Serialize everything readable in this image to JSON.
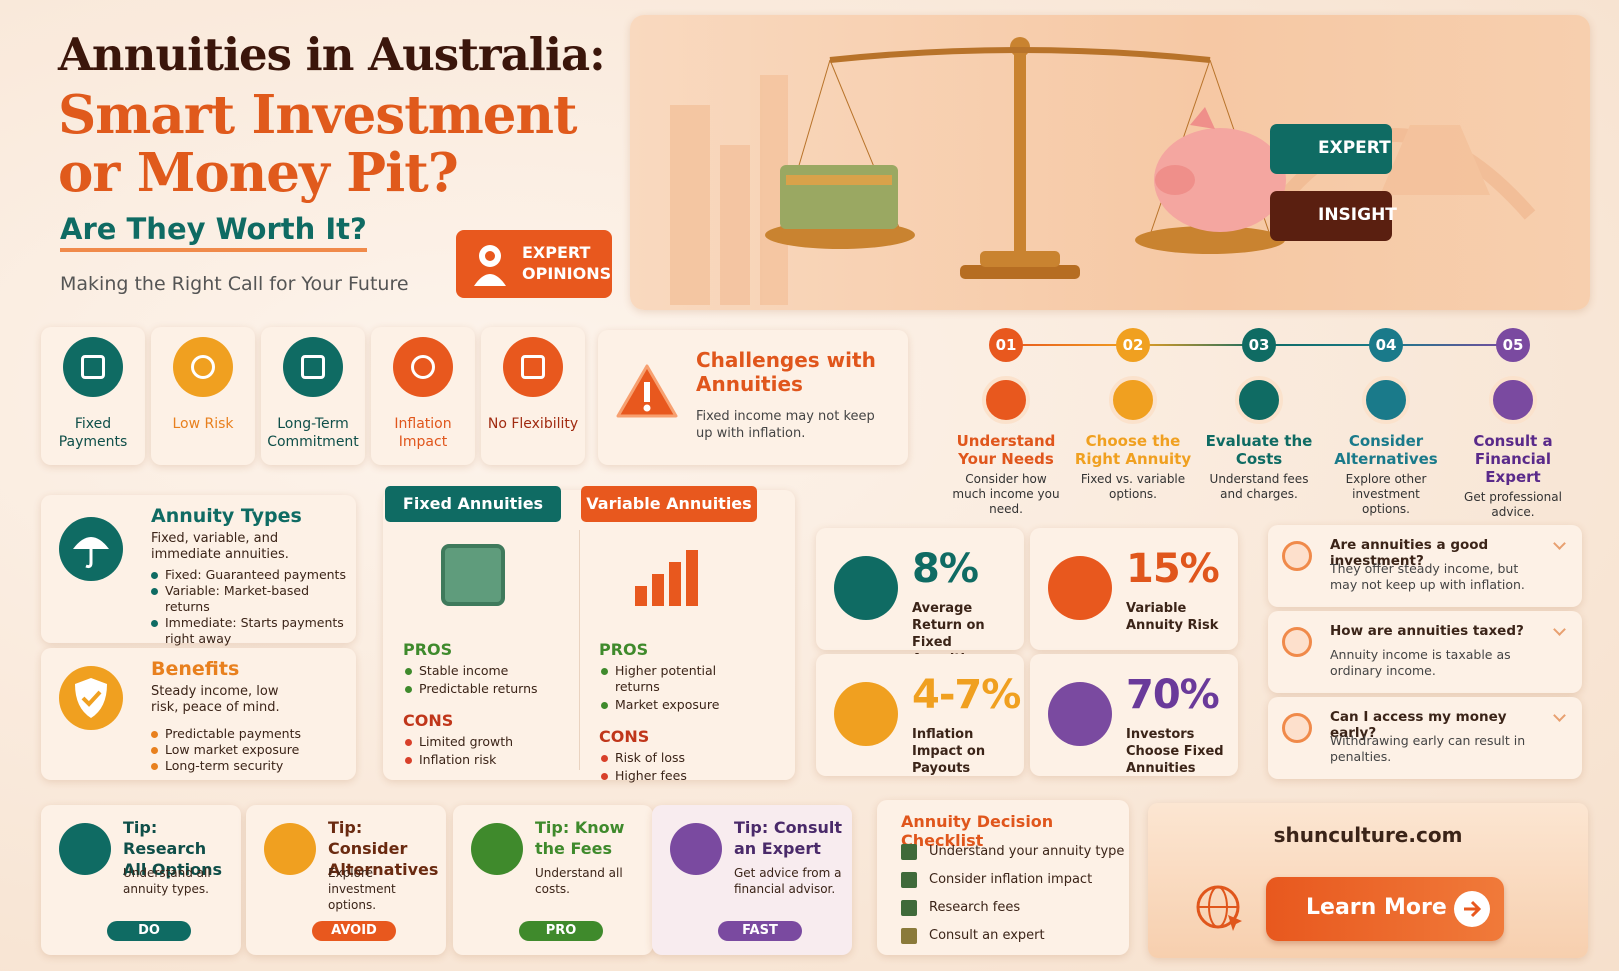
{
  "header": {
    "title_line1": "Annuities in Australia:",
    "title_line2": "Smart Investment",
    "title_line3": "or Money Pit?",
    "subtitle": "Are They Worth It?",
    "tagline": "Making the Right Call for Your Future",
    "badge": "EXPERT OPINIONS"
  },
  "hero": {
    "badges": [
      "EXPERT",
      "INSIGHT"
    ]
  },
  "features": [
    "Fixed Payments",
    "Low Risk",
    "Long-Term Commitment",
    "Inflation Impact",
    "No Flexibility"
  ],
  "challenge": {
    "title": "Challenges with Annuities",
    "text": "Fixed income may not keep up with inflation."
  },
  "steps": [
    {
      "number": "01",
      "title": "Understand Your Needs",
      "text": "Consider how much income you need."
    },
    {
      "number": "02",
      "title": "Choose the Right Annuity",
      "text": "Fixed vs. variable options."
    },
    {
      "number": "03",
      "title": "Evaluate the Costs",
      "text": "Understand fees and charges."
    },
    {
      "number": "04",
      "title": "Consider Alternatives",
      "text": "Explore other investment options."
    },
    {
      "number": "05",
      "title": "Consult a Financial Expert",
      "text": "Get professional advice."
    }
  ],
  "annuity_types": {
    "title": "Annuity Types",
    "text": "Fixed, variable, and immediate annuities.",
    "bullets": [
      {
        "label": "Fixed:",
        "text": "Guaranteed payments"
      },
      {
        "label": "Variable:",
        "text": "Market-based returns"
      },
      {
        "label": "Immediate:",
        "text": "Starts payments right away"
      }
    ]
  },
  "benefits": {
    "title": "Benefits",
    "text": "Steady income, low risk, peace of mind.",
    "bullets": [
      "Predictable payments",
      "Low market exposure",
      "Long-term security"
    ]
  },
  "comparison": [
    {
      "title": "Fixed Annuities",
      "pros_label": "PROS",
      "pros": [
        "Stable income",
        "Predictable returns"
      ],
      "cons_label": "CONS",
      "cons": [
        "Limited growth",
        "Inflation risk"
      ]
    },
    {
      "title": "Variable Annuities",
      "pros_label": "PROS",
      "pros": [
        "Higher potential returns",
        "Market exposure"
      ],
      "cons_label": "CONS",
      "cons": [
        "Risk of loss",
        "Higher fees"
      ]
    }
  ],
  "stats": [
    {
      "value": "8%",
      "label": "Average Return on Fixed Annuities"
    },
    {
      "value": "15%",
      "label": "Variable Annuity Risk"
    },
    {
      "value": "4-7%",
      "label": "Inflation Impact on Payouts"
    },
    {
      "value": "70%",
      "label": "Investors Choose Fixed Annuities"
    }
  ],
  "faq": [
    {
      "question": "Are annuities a good investment?",
      "answer": "They offer steady income, but may not keep up with inflation."
    },
    {
      "question": "How are annuities taxed?",
      "answer": "Annuity income is taxable as ordinary income."
    },
    {
      "question": "Can I access my money early?",
      "answer": "Withdrawing early can result in penalties."
    }
  ],
  "tips": [
    {
      "title": "Tip: Research All Options",
      "text": "Understand all annuity types.",
      "tag": "DO"
    },
    {
      "title": "Tip: Consider Alternatives",
      "text": "Explore investment options.",
      "tag": "AVOID"
    },
    {
      "title": "Tip: Know the Fees",
      "text": "Understand all costs.",
      "tag": "PRO"
    },
    {
      "title": "Tip: Consult an Expert",
      "text": "Get advice from a financial advisor.",
      "tag": "FAST"
    }
  ],
  "checklist": {
    "title": "Annuity Decision Checklist",
    "items": [
      "Understand your annuity type",
      "Consider inflation impact",
      "Research fees",
      "Consult an expert"
    ]
  },
  "cta": {
    "site": "shunculture.com",
    "button": "Learn More"
  }
}
